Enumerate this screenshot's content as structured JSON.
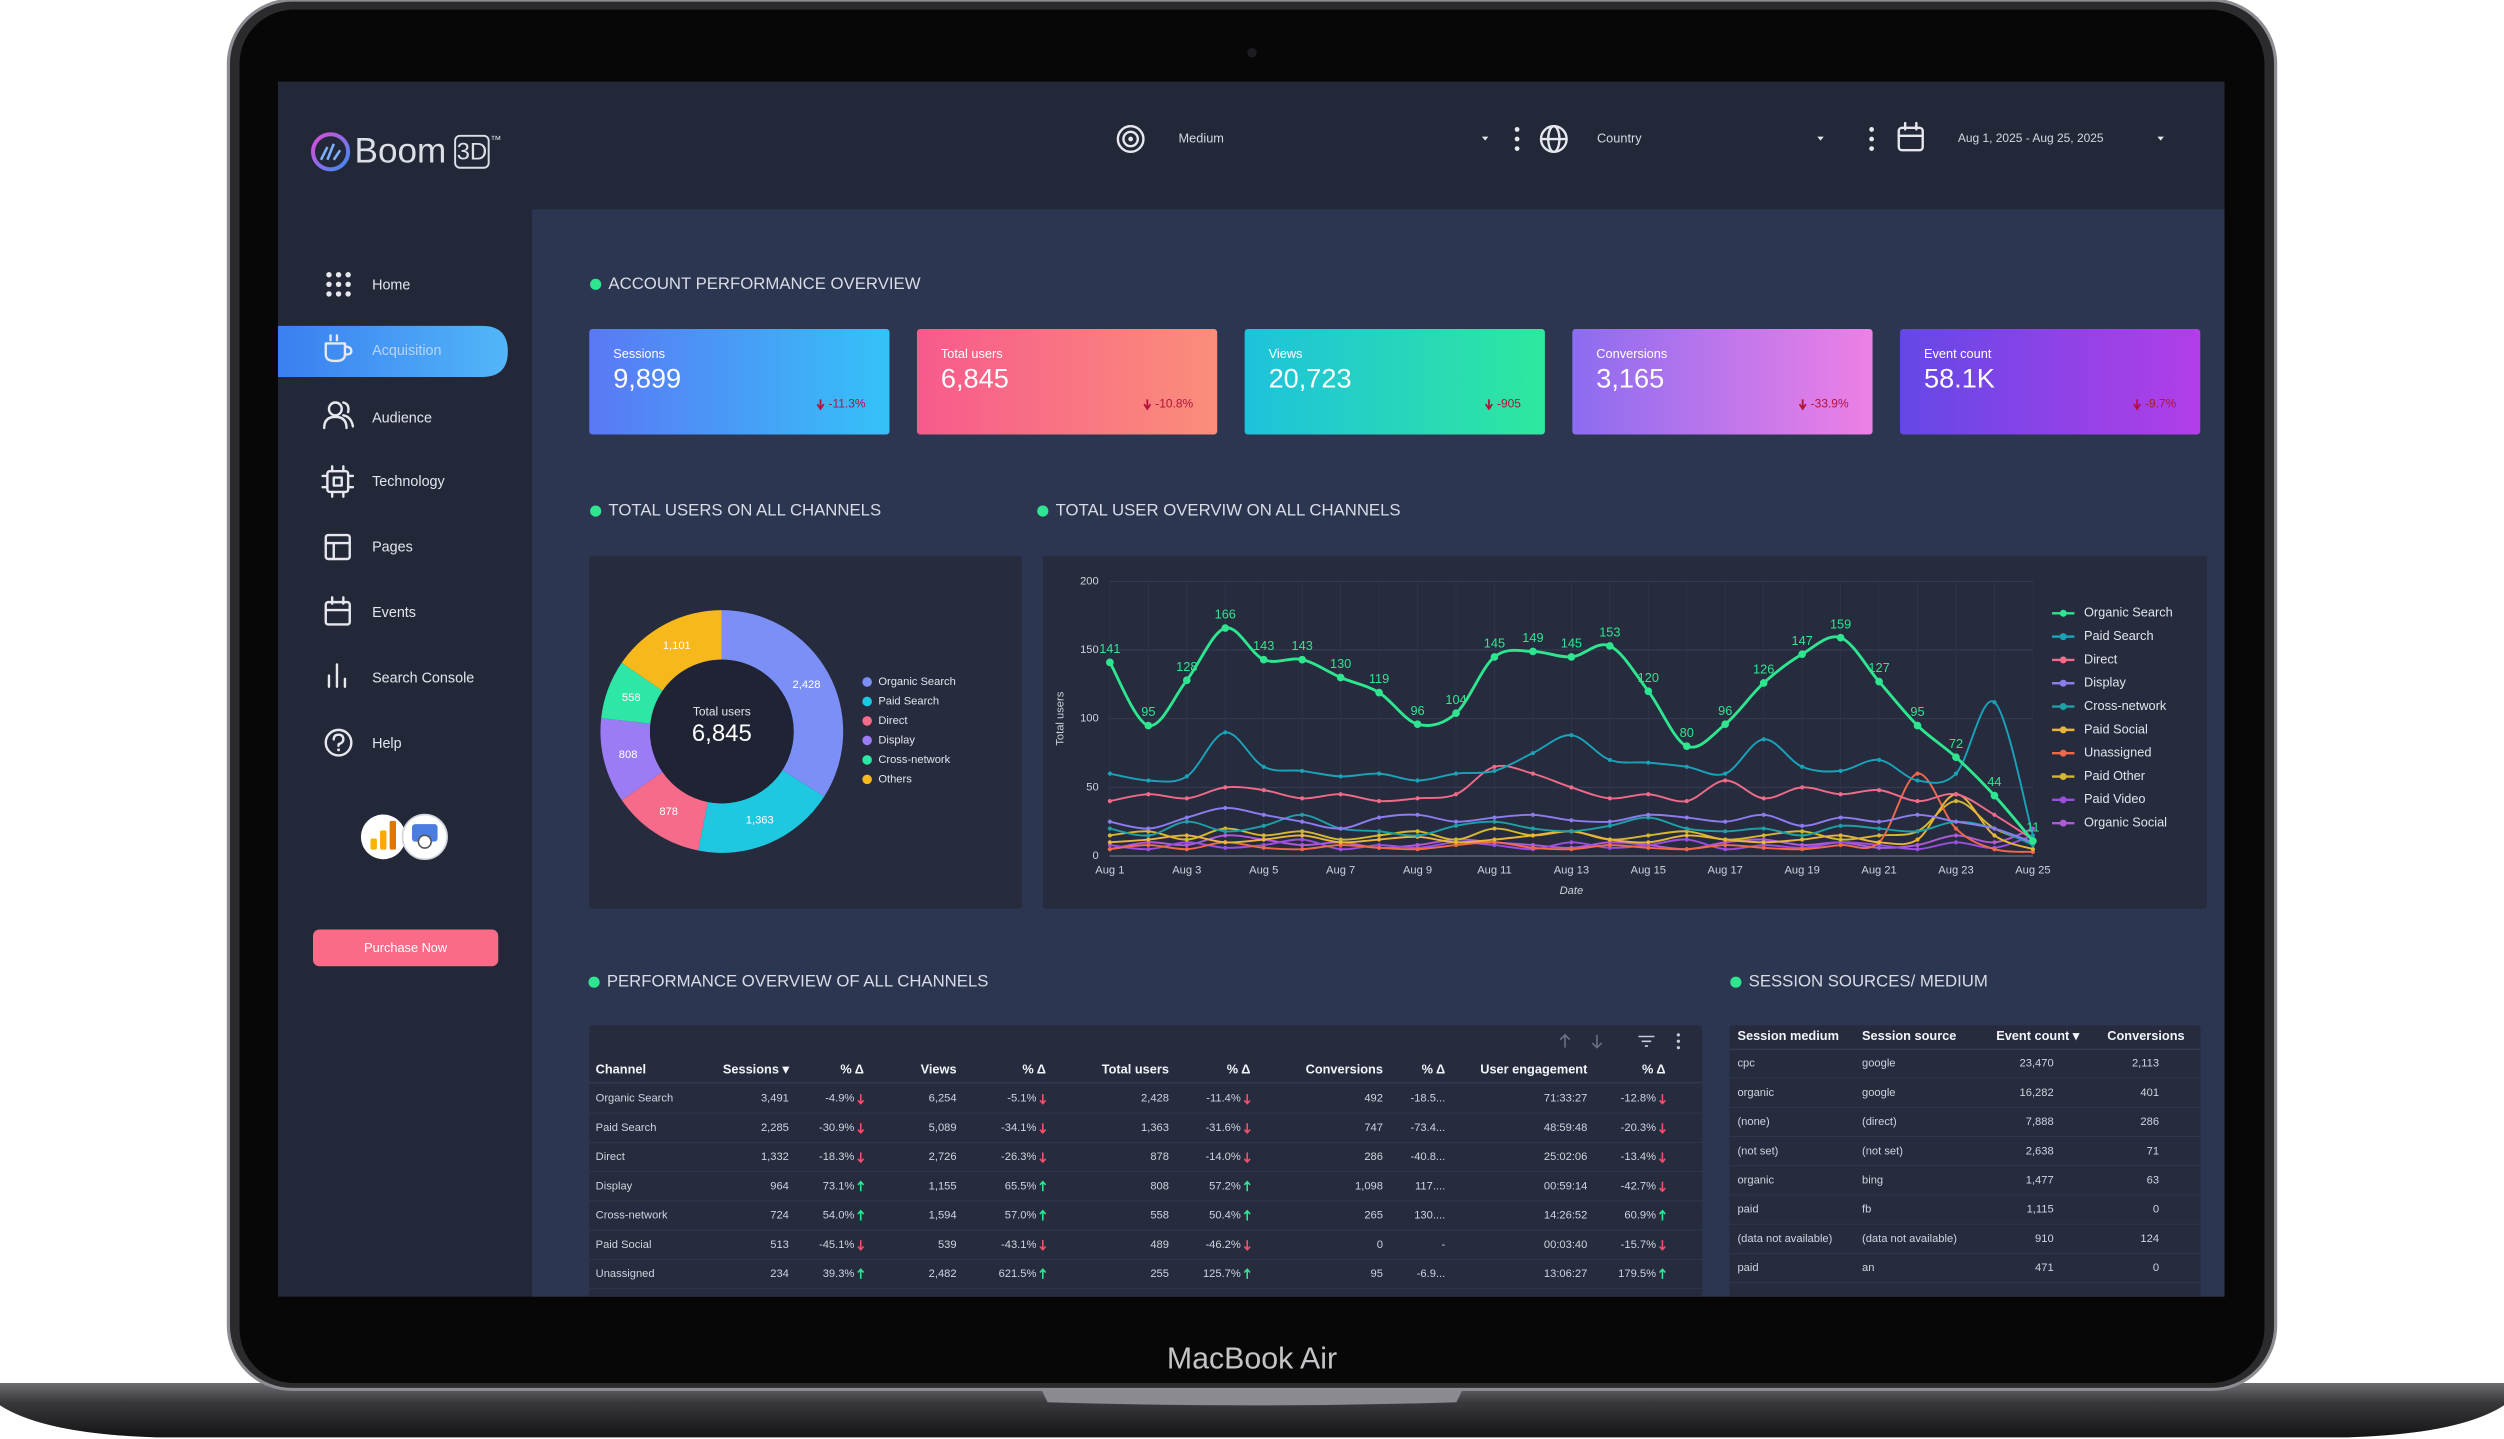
{
  "device": {
    "label": "MacBook Air"
  },
  "brand": {
    "name": "Boom",
    "mark": "3D",
    "tm": "™"
  },
  "filters": {
    "medium": "Medium",
    "country": "Country",
    "date_range": "Aug 1, 2025 - Aug 25, 2025"
  },
  "nav": {
    "items": [
      "Home",
      "Acquisition",
      "Audience",
      "Technology",
      "Pages",
      "Events",
      "Search Console",
      "Help"
    ],
    "active": 1,
    "button": "Purchase Now"
  },
  "sections": {
    "overview": "ACCOUNT PERFORMANCE OVERVIEW",
    "donut": "TOTAL USERS ON ALL CHANNELS",
    "line": "TOTAL USER OVERVIW ON ALL CHANNELS",
    "table": "PERFORMANCE OVERVIEW OF ALL CHANNELS",
    "sources": "SESSION SOURCES/ MEDIUM"
  },
  "kpis": [
    {
      "label": "Sessions",
      "value": "9,899",
      "delta": "-11.3%"
    },
    {
      "label": "Total users",
      "value": "6,845",
      "delta": "-10.8%"
    },
    {
      "label": "Views",
      "value": "20,723",
      "delta": "-905"
    },
    {
      "label": "Conversions",
      "value": "3,165",
      "delta": "-33.9%"
    },
    {
      "label": "Event count",
      "value": "58.1K",
      "delta": "-9.7%"
    }
  ],
  "chart_data": [
    {
      "type": "pie",
      "donut": true,
      "center_label": "Total users",
      "center_value": "6,845",
      "categories": [
        "Organic Search",
        "Paid Search",
        "Direct",
        "Display",
        "Cross-network",
        "Others"
      ],
      "values": [
        2428,
        1363,
        878,
        808,
        558,
        1101
      ],
      "value_labels": [
        "2,428",
        "1,363",
        "878",
        "808",
        "558",
        "1,101"
      ],
      "colors": [
        "#7b8ff7",
        "#1ec8e0",
        "#f76b8a",
        "#9b7cf4",
        "#2ee6a6",
        "#f6b81a"
      ]
    },
    {
      "type": "line",
      "x_label": "Date",
      "y_label": "Total users",
      "ylim": [
        0,
        200
      ],
      "yticks": [
        0,
        50,
        100,
        150,
        200
      ],
      "grid": true,
      "legend": "right",
      "categories": [
        "Aug 1",
        null,
        "Aug 3",
        null,
        "Aug 5",
        null,
        "Aug 7",
        null,
        "Aug 9",
        null,
        "Aug 11",
        null,
        "Aug 13",
        null,
        "Aug 15",
        null,
        "Aug 17",
        null,
        "Aug 19",
        null,
        "Aug 21",
        null,
        "Aug 23",
        null,
        "Aug 25"
      ],
      "series": [
        {
          "name": "Organic Search",
          "color": "#2ee68f",
          "data_labels": true,
          "values": [
            141,
            95,
            128,
            166,
            143,
            143,
            130,
            119,
            96,
            104,
            145,
            149,
            145,
            153,
            120,
            80,
            96,
            126,
            147,
            159,
            127,
            95,
            72,
            44,
            11
          ]
        },
        {
          "name": "Paid Search",
          "color": "#1aa3b8",
          "values": [
            60,
            55,
            58,
            90,
            65,
            62,
            58,
            60,
            55,
            60,
            62,
            75,
            88,
            70,
            68,
            65,
            60,
            85,
            65,
            62,
            70,
            55,
            60,
            112,
            15
          ]
        },
        {
          "name": "Direct",
          "color": "#f06a8a",
          "values": [
            40,
            45,
            42,
            50,
            48,
            42,
            45,
            40,
            42,
            45,
            65,
            60,
            50,
            42,
            45,
            40,
            55,
            42,
            50,
            45,
            48,
            40,
            45,
            30,
            12
          ]
        },
        {
          "name": "Display",
          "color": "#8c7cf0",
          "values": [
            25,
            20,
            28,
            35,
            30,
            25,
            20,
            28,
            30,
            25,
            28,
            30,
            26,
            25,
            30,
            28,
            25,
            30,
            22,
            28,
            25,
            30,
            25,
            20,
            10
          ]
        },
        {
          "name": "Cross-network",
          "color": "#1f9fa8",
          "values": [
            20,
            15,
            25,
            18,
            22,
            30,
            20,
            18,
            15,
            22,
            25,
            20,
            18,
            22,
            28,
            20,
            18,
            20,
            15,
            22,
            20,
            18,
            25,
            20,
            8
          ]
        },
        {
          "name": "Paid Social",
          "color": "#e8b43a",
          "values": [
            10,
            12,
            15,
            10,
            12,
            15,
            10,
            12,
            14,
            10,
            12,
            15,
            18,
            12,
            10,
            15,
            12,
            10,
            12,
            15,
            10,
            12,
            45,
            15,
            5
          ]
        },
        {
          "name": "Unassigned",
          "color": "#f0684a",
          "values": [
            5,
            8,
            5,
            10,
            6,
            5,
            8,
            6,
            5,
            8,
            10,
            6,
            5,
            8,
            6,
            5,
            8,
            6,
            5,
            8,
            10,
            60,
            20,
            5,
            3
          ]
        },
        {
          "name": "Paid Other",
          "color": "#d4b830",
          "values": [
            15,
            18,
            12,
            20,
            15,
            18,
            12,
            15,
            18,
            12,
            20,
            15,
            18,
            12,
            15,
            18,
            12,
            15,
            18,
            12,
            15,
            18,
            40,
            20,
            10
          ]
        },
        {
          "name": "Paid Video",
          "color": "#9b4fe0",
          "values": [
            8,
            5,
            10,
            6,
            8,
            12,
            5,
            8,
            6,
            10,
            8,
            5,
            10,
            6,
            8,
            12,
            5,
            8,
            6,
            10,
            8,
            5,
            10,
            6,
            15
          ]
        },
        {
          "name": "Organic Social",
          "color": "#b05ad8",
          "values": [
            5,
            10,
            8,
            15,
            12,
            8,
            10,
            6,
            8,
            12,
            10,
            8,
            6,
            10,
            8,
            5,
            10,
            12,
            8,
            10,
            6,
            8,
            15,
            10,
            20
          ]
        }
      ]
    }
  ],
  "channels_table": {
    "columns": [
      "Channel",
      "Sessions ▾",
      "% Δ",
      "Views",
      "% Δ",
      "Total users",
      "% Δ",
      "Conversions",
      "% Δ",
      "User engagement",
      "% Δ"
    ],
    "rows": [
      [
        "Organic Search",
        "3,491",
        "-4.9%",
        "6,254",
        "-5.1%",
        "2,428",
        "-11.4%",
        "492",
        "-18.5...",
        "71:33:27",
        "-12.8%"
      ],
      [
        "Paid Search",
        "2,285",
        "-30.9%",
        "5,089",
        "-34.1%",
        "1,363",
        "-31.6%",
        "747",
        "-73.4...",
        "48:59:48",
        "-20.3%"
      ],
      [
        "Direct",
        "1,332",
        "-18.3%",
        "2,726",
        "-26.3%",
        "878",
        "-14.0%",
        "286",
        "-40.8...",
        "25:02:06",
        "-13.4%"
      ],
      [
        "Display",
        "964",
        "73.1%",
        "1,155",
        "65.5%",
        "808",
        "57.2%",
        "1,098",
        "117....",
        "00:59:14",
        "-42.7%"
      ],
      [
        "Cross-network",
        "724",
        "54.0%",
        "1,594",
        "57.0%",
        "558",
        "50.4%",
        "265",
        "130....",
        "14:26:52",
        "60.9%"
      ],
      [
        "Paid Social",
        "513",
        "-45.1%",
        "539",
        "-43.1%",
        "489",
        "-46.2%",
        "0",
        "-",
        "00:03:40",
        "-15.7%"
      ],
      [
        "Unassigned",
        "234",
        "39.3%",
        "2,482",
        "621.5%",
        "255",
        "125.7%",
        "95",
        "-6.9...",
        "13:06:27",
        "179.5%"
      ]
    ]
  },
  "sources_table": {
    "columns": [
      "Session medium",
      "Session source",
      "Event count ▾",
      "Conversions"
    ],
    "rows": [
      [
        "cpc",
        "google",
        "23,470",
        "2,113"
      ],
      [
        "organic",
        "google",
        "16,282",
        "401"
      ],
      [
        "(none)",
        "(direct)",
        "7,888",
        "286"
      ],
      [
        "(not set)",
        "(not set)",
        "2,638",
        "71"
      ],
      [
        "organic",
        "bing",
        "1,477",
        "63"
      ],
      [
        "paid",
        "fb",
        "1,115",
        "0"
      ],
      [
        "(data not available)",
        "(data not available)",
        "910",
        "124"
      ],
      [
        "paid",
        "an",
        "471",
        "0"
      ]
    ]
  }
}
